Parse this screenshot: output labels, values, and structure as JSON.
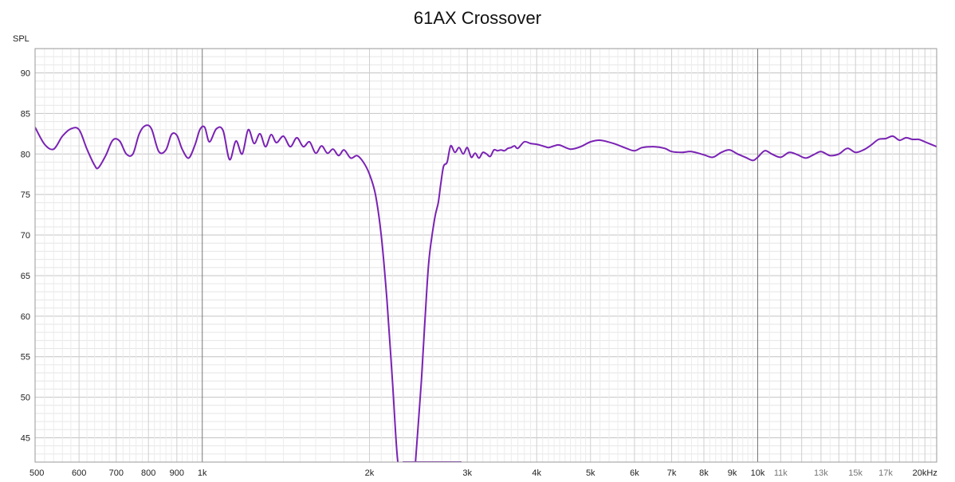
{
  "chart_data": {
    "type": "line",
    "title": "61AX Crossover",
    "ylabel": "SPL",
    "xlabel": "",
    "xscale": "log",
    "xlim": [
      500,
      21000
    ],
    "ylim": [
      42,
      93
    ],
    "grid": true,
    "x_tick_labels": [
      {
        "value": 500,
        "label": "500"
      },
      {
        "value": 600,
        "label": "600"
      },
      {
        "value": 700,
        "label": "700"
      },
      {
        "value": 800,
        "label": "800"
      },
      {
        "value": 900,
        "label": "900"
      },
      {
        "value": 1000,
        "label": "1k"
      },
      {
        "value": 2000,
        "label": "2k"
      },
      {
        "value": 3000,
        "label": "3k"
      },
      {
        "value": 4000,
        "label": "4k"
      },
      {
        "value": 5000,
        "label": "5k"
      },
      {
        "value": 6000,
        "label": "6k"
      },
      {
        "value": 7000,
        "label": "7k"
      },
      {
        "value": 8000,
        "label": "8k"
      },
      {
        "value": 9000,
        "label": "9k"
      },
      {
        "value": 10000,
        "label": "10k"
      },
      {
        "value": 11000,
        "label": "11k"
      },
      {
        "value": 13000,
        "label": "13k"
      },
      {
        "value": 15000,
        "label": "15k"
      },
      {
        "value": 17000,
        "label": "17k"
      },
      {
        "value": 20000,
        "label": "20kHz"
      }
    ],
    "y_tick_labels": [
      {
        "value": 45,
        "label": "45"
      },
      {
        "value": 50,
        "label": "50"
      },
      {
        "value": 55,
        "label": "55"
      },
      {
        "value": 60,
        "label": "60"
      },
      {
        "value": 65,
        "label": "65"
      },
      {
        "value": 70,
        "label": "70"
      },
      {
        "value": 75,
        "label": "75"
      },
      {
        "value": 80,
        "label": "80"
      },
      {
        "value": 85,
        "label": "85"
      },
      {
        "value": 90,
        "label": "90"
      }
    ],
    "series": [
      {
        "color": "#7a22b4",
        "x": [
          500,
          520,
          540,
          560,
          580,
          600,
          620,
          640,
          650,
          670,
          690,
          710,
          730,
          750,
          770,
          790,
          810,
          835,
          860,
          880,
          900,
          920,
          945,
          970,
          990,
          1010,
          1030,
          1060,
          1090,
          1120,
          1150,
          1180,
          1210,
          1240,
          1270,
          1300,
          1330,
          1360,
          1400,
          1440,
          1480,
          1520,
          1560,
          1600,
          1640,
          1680,
          1720,
          1760,
          1800,
          1850,
          1900,
          1950,
          2000,
          2050,
          2100,
          2150,
          2200,
          2250,
          2300,
          2350,
          2400,
          2450,
          2500,
          2550,
          2600,
          2650,
          2700,
          2750,
          2800,
          2850,
          2900,
          2930
        ],
        "y": [
          83.3,
          81.2,
          80.6,
          82.2,
          83.1,
          83.0,
          80.6,
          78.6,
          78.3,
          79.8,
          81.7,
          81.6,
          80.0,
          80.0,
          82.5,
          83.5,
          83.1,
          80.3,
          80.5,
          82.4,
          82.3,
          80.6,
          79.5,
          81.1,
          83.0,
          83.3,
          81.5,
          83.1,
          82.9,
          79.3,
          81.6,
          80.0,
          83.0,
          81.3,
          82.5,
          80.9,
          82.4,
          81.4,
          82.2,
          80.9,
          82.0,
          80.9,
          81.5,
          80.1,
          81.0,
          80.1,
          80.6,
          79.8,
          80.5,
          79.5,
          79.8,
          79.0,
          77.5,
          75.0,
          70.0,
          62.0,
          52.0,
          42.0,
          42.0,
          42.0,
          42.0,
          42.0,
          42.0,
          42.0,
          42.0,
          42.0,
          42.0,
          42.0,
          42.0,
          42.0,
          42.0,
          42.0
        ]
      },
      {
        "color": "#7a22b4",
        "x": [
          2420,
          2480,
          2520,
          2560,
          2620,
          2660,
          2690,
          2720,
          2760,
          2800,
          2850,
          2900,
          2950,
          3000,
          3050,
          3100,
          3150,
          3200,
          3250,
          3300,
          3350,
          3400,
          3450,
          3500,
          3550,
          3600,
          3650,
          3700,
          3800,
          3900,
          4000,
          4100,
          4200,
          4300,
          4400,
          4600,
          4800,
          5000,
          5200,
          5500,
          5800,
          6000,
          6200,
          6500,
          6800,
          7000,
          7300,
          7600,
          8000,
          8300,
          8600,
          8900,
          9200,
          9500,
          9800,
          10000,
          10300,
          10600,
          11000,
          11400,
          11800,
          12200,
          12600,
          13000,
          13500,
          14000,
          14500,
          15000,
          15500,
          16000,
          16500,
          17000,
          17500,
          18000,
          18500,
          19000,
          19500,
          20000,
          21000
        ],
        "y": [
          42.0,
          52.0,
          60.0,
          67.0,
          72.0,
          74.0,
          76.5,
          78.5,
          79.0,
          81.0,
          80.2,
          80.8,
          80.0,
          80.8,
          79.6,
          80.1,
          79.5,
          80.2,
          80.0,
          79.7,
          80.5,
          80.4,
          80.5,
          80.4,
          80.7,
          80.8,
          81.0,
          80.7,
          81.5,
          81.3,
          81.2,
          81.0,
          80.8,
          81.0,
          81.1,
          80.6,
          80.9,
          81.5,
          81.7,
          81.3,
          80.7,
          80.4,
          80.8,
          80.9,
          80.7,
          80.3,
          80.2,
          80.3,
          79.9,
          79.6,
          80.2,
          80.5,
          80.0,
          79.6,
          79.2,
          79.6,
          80.4,
          80.0,
          79.6,
          80.2,
          79.9,
          79.5,
          79.9,
          80.3,
          79.8,
          80.0,
          80.7,
          80.2,
          80.5,
          81.1,
          81.8,
          81.9,
          82.2,
          81.7,
          82.0,
          81.8,
          81.8,
          81.5,
          80.9
        ]
      }
    ]
  }
}
